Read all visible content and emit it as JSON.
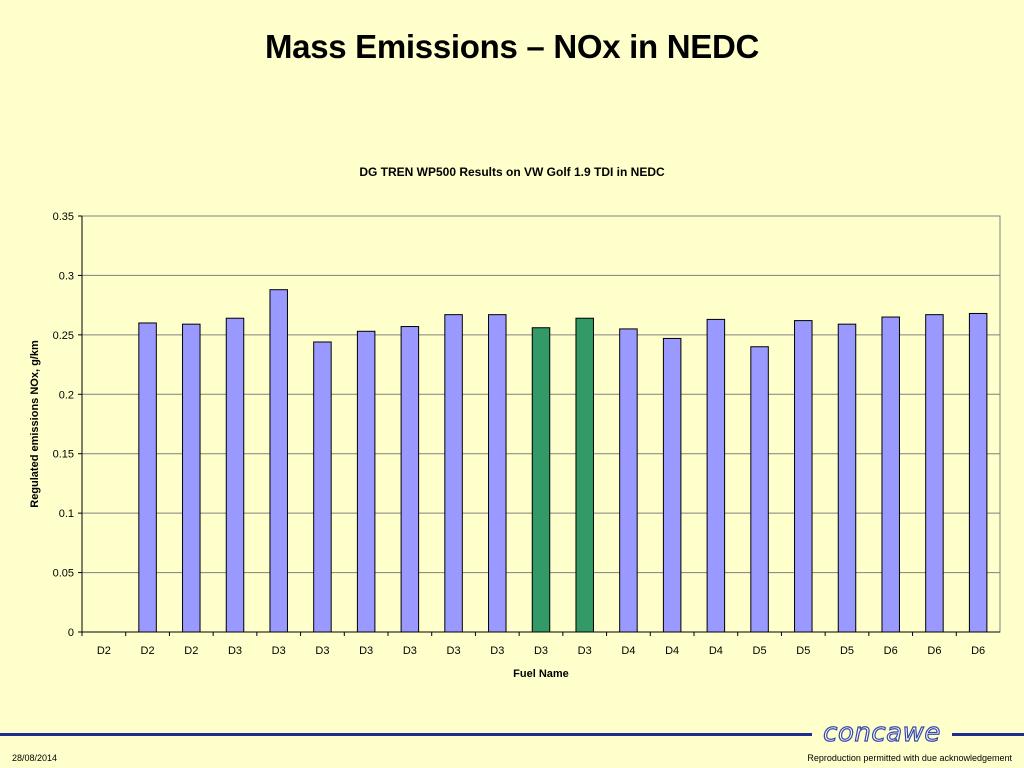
{
  "slide": {
    "title": "Mass Emissions – NOx in NEDC",
    "date": "28/08/2014",
    "note": "Reproduction permitted with due acknowledgement",
    "logo_text": "concawe"
  },
  "colors": {
    "background": "#ffffcc",
    "bar_default": "#9999ff",
    "bar_highlight": "#339966",
    "footer_line": "#1e2d8f"
  },
  "chart_data": {
    "type": "bar",
    "title": "DG TREN WP500 Results on VW Golf 1.9 TDI in NEDC",
    "xlabel": "Fuel Name",
    "ylabel": "Regulated emissions NOx, g/km",
    "ylim": [
      0,
      0.35
    ],
    "yticks": [
      "0",
      "0.05",
      "0.1",
      "0.15",
      "0.2",
      "0.25",
      "0.3",
      "0.35"
    ],
    "grid": true,
    "legend": "none",
    "categories": [
      "D2",
      "D2",
      "D2",
      "D3",
      "D3",
      "D3",
      "D3",
      "D3",
      "D3",
      "D3",
      "D3",
      "D3",
      "D4",
      "D4",
      "D4",
      "D5",
      "D5",
      "D5",
      "D6",
      "D6",
      "D6"
    ],
    "values": [
      null,
      0.26,
      0.259,
      0.264,
      0.288,
      0.244,
      0.253,
      0.257,
      0.267,
      0.267,
      0.256,
      0.264,
      0.255,
      0.247,
      0.263,
      0.24,
      0.262,
      0.259,
      0.265,
      0.267,
      0.268
    ],
    "highlight_indices": [
      10,
      11
    ]
  }
}
